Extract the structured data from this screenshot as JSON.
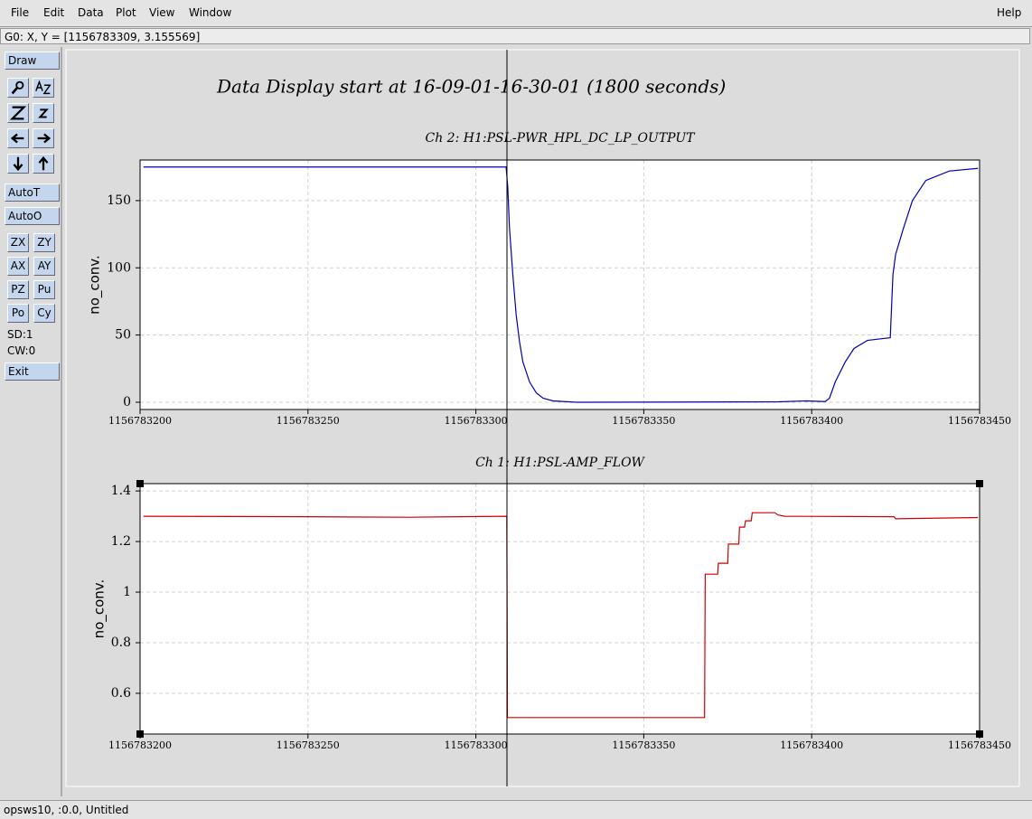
{
  "menu": [
    "File",
    "Edit",
    "Data",
    "Plot",
    "View",
    "Window"
  ],
  "help": "Help",
  "status": "G0: X, Y = [1156783309, 3.155569]",
  "toolbar": {
    "draw": "Draw",
    "autot": "AutoT",
    "autoo": "AutoO",
    "pairs": [
      [
        "ZX",
        "ZY"
      ],
      [
        "AX",
        "AY"
      ],
      [
        "PZ",
        "Pu"
      ],
      [
        "Po",
        "Cy"
      ]
    ],
    "sd": "SD:1",
    "cw": "CW:0",
    "exit": "Exit"
  },
  "title": "Data Display start at 16-09-01-16-30-01 (1800 seconds)",
  "footer": "opsws10, :0.0, Untitled",
  "chart_data": [
    {
      "type": "line",
      "title": "Ch 2: H1:PSL-PWR_HPL_DC_LP_OUTPUT",
      "y_label": "no_conv.",
      "color": "#0000b0",
      "grid": true,
      "xlim": [
        1156783200,
        1156783450
      ],
      "xticks": [
        1156783200,
        1156783250,
        1156783300,
        1156783350,
        1156783400,
        1156783450
      ],
      "ylim": [
        -5.4,
        180.2
      ],
      "yticks": [
        0,
        50,
        100,
        150
      ],
      "x": [
        1156783201,
        1156783250,
        1156783309,
        1156783309.5,
        1156783310,
        1156783311,
        1156783312,
        1156783313,
        1156783314,
        1156783316,
        1156783318,
        1156783320,
        1156783323,
        1156783330,
        1156783390,
        1156783398.5,
        1156783404,
        1156783405.3,
        1156783407,
        1156783410,
        1156783412.6,
        1156783416.6,
        1156783420,
        1156783423.4,
        1156783424.2,
        1156783425,
        1156783427.4,
        1156783430,
        1156783434,
        1156783441,
        1156783449.5
      ],
      "values": [
        175,
        175,
        175,
        160,
        130,
        95,
        65,
        45,
        30,
        15,
        7,
        3,
        1,
        0,
        0.3,
        1,
        0.5,
        3,
        15,
        30,
        40,
        46,
        47,
        48,
        95,
        110,
        130,
        150,
        165,
        172,
        174
      ]
    },
    {
      "type": "line",
      "title": "Ch 1: H1:PSL-AMP_FLOW",
      "y_label": "no_conv.",
      "color": "#d00000",
      "grid": true,
      "xlim": [
        1156783200,
        1156783450
      ],
      "xticks": [
        1156783200,
        1156783250,
        1156783300,
        1156783350,
        1156783400,
        1156783450
      ],
      "ylim": [
        0.439,
        1.429
      ],
      "yticks": [
        0.6,
        0.8,
        1,
        1.2,
        1.4
      ],
      "x": [
        1156783201,
        1156783250,
        1156783280,
        1156783309.2,
        1156783309.3,
        1156783309.4,
        1156783368.1,
        1156783368.3,
        1156783372,
        1156783372.2,
        1156783375,
        1156783375.2,
        1156783378.3,
        1156783378.5,
        1156783380,
        1156783380.3,
        1156783382,
        1156783382.3,
        1156783389,
        1156783390,
        1156783392,
        1156783424.5,
        1156783425,
        1156783449.5
      ],
      "values": [
        1.3,
        1.298,
        1.296,
        1.3,
        0.954,
        0.504,
        0.504,
        1.071,
        1.071,
        1.114,
        1.114,
        1.19,
        1.19,
        1.257,
        1.257,
        1.282,
        1.282,
        1.314,
        1.314,
        1.305,
        1.3,
        1.298,
        1.29,
        1.295
      ]
    }
  ]
}
